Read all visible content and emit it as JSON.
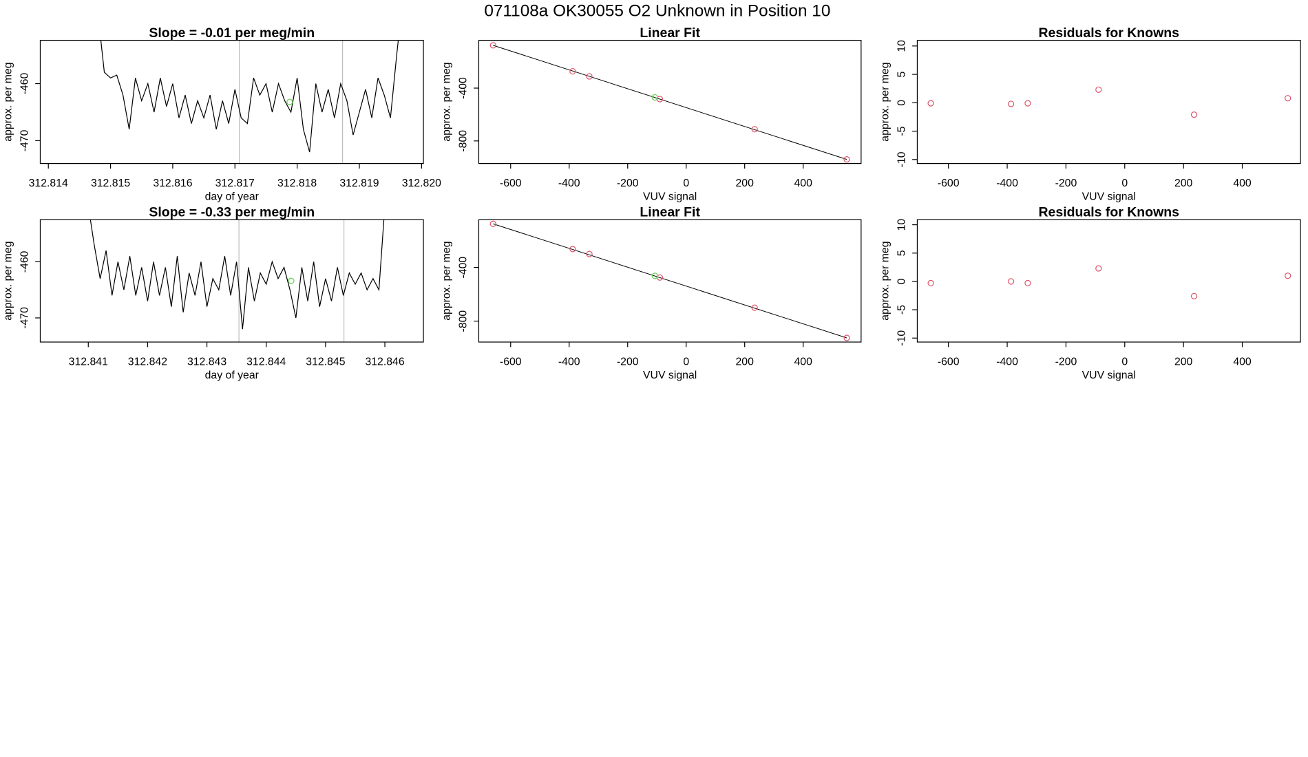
{
  "title": "071108a     OK30055   O2 Unknown in Position  10",
  "chart_data": [
    {
      "type": "line",
      "title": "Slope =  -0.01  per meg/min",
      "x_label": "day of year",
      "y_label": "approx. per meg",
      "x": [
        312.8148,
        312.8149,
        312.815,
        312.8151,
        312.8152,
        312.8153,
        312.8154,
        312.8155,
        312.8156,
        312.8157,
        312.8158,
        312.8159,
        312.816,
        312.8161,
        312.8162,
        312.8163,
        312.8164,
        312.8165,
        312.8166,
        312.8167,
        312.8168,
        312.8169,
        312.817,
        312.8171,
        312.8172,
        312.8173,
        312.8174,
        312.8175,
        312.8176,
        312.8177,
        312.8178,
        312.8179,
        312.818,
        312.8181,
        312.8182,
        312.8183,
        312.8184,
        312.8185,
        312.8186,
        312.8187,
        312.8188,
        312.8189,
        312.819,
        312.8191,
        312.8192,
        312.8193,
        312.8194,
        312.8195,
        312.8196,
        312.8197
      ],
      "values": [
        -448,
        -458,
        -459,
        -458.5,
        -462,
        -468,
        -459,
        -463,
        -460,
        -465,
        -459,
        -464,
        -460,
        -466,
        -462,
        -467,
        -463,
        -466,
        -462,
        -468,
        -463,
        -467,
        -461,
        -466,
        -467,
        -459,
        -462,
        -460,
        -465,
        -460,
        -463,
        -465,
        -459,
        -468,
        -472,
        -460,
        -465,
        -461,
        -466,
        -460,
        -463,
        -469,
        -465,
        -461,
        -466,
        -459,
        -462,
        -466,
        -455,
        -445
      ],
      "color": "#000000",
      "xlim": [
        312.81387,
        312.82003
      ],
      "ylim": [
        -474,
        -452.4
      ],
      "xticks": [
        312.814,
        312.815,
        312.816,
        312.817,
        312.818,
        312.819,
        {
          "value": 312.82,
          "label": "312.820"
        }
      ],
      "yticks": [
        -460,
        -470
      ],
      "vlines": [
        312.81707,
        312.81873
      ],
      "vline_color": "#bebebe",
      "highlight": {
        "x": 312.81788,
        "y": -463.2,
        "color": "#61d04f"
      }
    },
    {
      "type": "scatter",
      "title": "Linear Fit",
      "x_label": "VUV signal",
      "y_label": "approx. per meg",
      "x": [
        -660,
        -388,
        -331,
        -90,
        234,
        549
      ],
      "values": [
        -76,
        -273,
        -311,
        -483,
        -711,
        -940
      ],
      "color": "#df536b",
      "xlim": [
        -709,
        598
      ],
      "ylim": [
        -971,
        -38
      ],
      "xticks": [
        -600,
        -400,
        -200,
        0,
        200,
        400
      ],
      "yticks": [
        -400,
        -800
      ],
      "highlight": {
        "x": -107,
        "y": -470,
        "color": "#61d04f"
      },
      "fit_line": {
        "x": [
          -660,
          549
        ],
        "y": [
          -76,
          -940
        ]
      }
    },
    {
      "type": "scatter",
      "title": "Residuals for Knowns",
      "x_label": "VUV signal",
      "y_label": "approx. per meg",
      "x": [
        -660,
        -387,
        -330,
        -89,
        236,
        555
      ],
      "values": [
        -0.1,
        -0.2,
        -0.1,
        2.3,
        -2.1,
        0.8
      ],
      "color": "#df536b",
      "xlim": [
        -706,
        598
      ],
      "ylim": [
        -10.7,
        11
      ],
      "xticks": [
        -600,
        -400,
        -200,
        0,
        200,
        400
      ],
      "yticks": [
        10,
        5,
        0,
        -5,
        -10
      ]
    },
    {
      "type": "line",
      "title": "Slope =  -0.33  per meg/min",
      "x_label": "day of year",
      "y_label": "approx. per meg",
      "x": [
        312.841,
        312.8411,
        312.8412,
        312.8413,
        312.8414,
        312.8415,
        312.8416,
        312.8417,
        312.8418,
        312.8419,
        312.842,
        312.8421,
        312.8422,
        312.8423,
        312.8424,
        312.8425,
        312.8426,
        312.8427,
        312.8428,
        312.8429,
        312.843,
        312.8431,
        312.8432,
        312.8433,
        312.8434,
        312.8435,
        312.8436,
        312.8437,
        312.8438,
        312.8439,
        312.844,
        312.8441,
        312.8442,
        312.8443,
        312.8444,
        312.8445,
        312.8446,
        312.8447,
        312.8448,
        312.8449,
        312.845,
        312.8451,
        312.8452,
        312.8453,
        312.8454,
        312.8455,
        312.8456,
        312.8457,
        312.8458,
        312.8459,
        312.846
      ],
      "values": [
        -450,
        -457,
        -463,
        -458,
        -466,
        -460,
        -465,
        -459,
        -466,
        -461,
        -467,
        -460,
        -466,
        -461,
        -468,
        -459,
        -469,
        -462,
        -466,
        -460,
        -468,
        -463,
        -465,
        -459,
        -466,
        -460,
        -472,
        -461,
        -467,
        -462,
        -464,
        -460,
        -463,
        -461,
        -465,
        -470,
        -461,
        -467,
        -460,
        -468,
        -463,
        -467,
        -461,
        -466,
        -462,
        -464,
        -462,
        -465,
        -463,
        -465,
        -450
      ],
      "color": "#000000",
      "xlim": [
        312.84019,
        312.84665
      ],
      "ylim": [
        -474.3,
        -452.5
      ],
      "xticks": [
        312.841,
        312.842,
        312.843,
        312.844,
        312.845,
        312.846
      ],
      "yticks": [
        -460,
        -470
      ],
      "vlines": [
        312.84354,
        312.84531
      ],
      "vline_color": "#bebebe",
      "highlight": {
        "x": 312.84442,
        "y": -463.4,
        "color": "#61d04f"
      }
    },
    {
      "type": "scatter",
      "title": "Linear Fit",
      "x_label": "VUV signal",
      "y_label": "approx. per meg",
      "x": [
        -660,
        -388,
        -331,
        -90,
        234,
        549
      ],
      "values": [
        -75,
        -263,
        -300,
        -475,
        -700,
        -925
      ],
      "color": "#df536b",
      "xlim": [
        -709,
        598
      ],
      "ylim": [
        -956,
        -44
      ],
      "xticks": [
        -600,
        -400,
        -200,
        0,
        200,
        400
      ],
      "yticks": [
        -400,
        -800
      ],
      "highlight": {
        "x": -107,
        "y": -463,
        "color": "#61d04f"
      },
      "fit_line": {
        "x": [
          -660,
          549
        ],
        "y": [
          -75,
          -925
        ]
      }
    },
    {
      "type": "scatter",
      "title": "Residuals for Knowns",
      "x_label": "VUV signal",
      "y_label": "approx. per meg",
      "x": [
        -660,
        -387,
        -330,
        -89,
        236,
        555
      ],
      "values": [
        -0.3,
        0,
        -0.3,
        2.3,
        -2.6,
        1.0
      ],
      "color": "#df536b",
      "xlim": [
        -706,
        598
      ],
      "ylim": [
        -10.7,
        10.9
      ],
      "xticks": [
        -600,
        -400,
        -200,
        0,
        200,
        400
      ],
      "yticks": [
        10,
        5,
        0,
        -5,
        -10
      ]
    }
  ]
}
